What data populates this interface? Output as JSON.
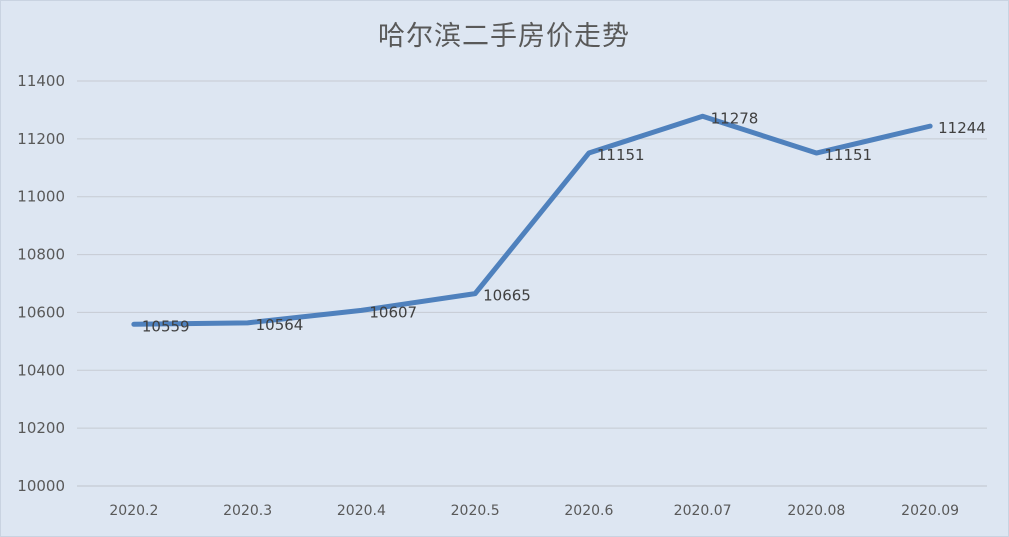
{
  "chart_data": {
    "type": "line",
    "title": "哈尔滨二手房价走势",
    "categories": [
      "2020.2",
      "2020.3",
      "2020.4",
      "2020.5",
      "2020.6",
      "2020.07",
      "2020.08",
      "2020.09"
    ],
    "series": [
      {
        "values": [
          10559,
          10564,
          10607,
          10665,
          11151,
          11278,
          11151,
          11244
        ]
      }
    ],
    "data_labels": [
      "10559",
      "10564",
      "10607",
      "10665",
      "11151",
      "11278",
      "11151",
      "11244"
    ],
    "ylim": [
      10000,
      11400
    ],
    "yticks": [
      10000,
      10200,
      10400,
      10600,
      10800,
      11000,
      11200,
      11400
    ],
    "xlabel": "",
    "ylabel": "",
    "grid": true,
    "legend": "none",
    "line_color": "#4f81bd",
    "background_color": "#dde6f2"
  }
}
